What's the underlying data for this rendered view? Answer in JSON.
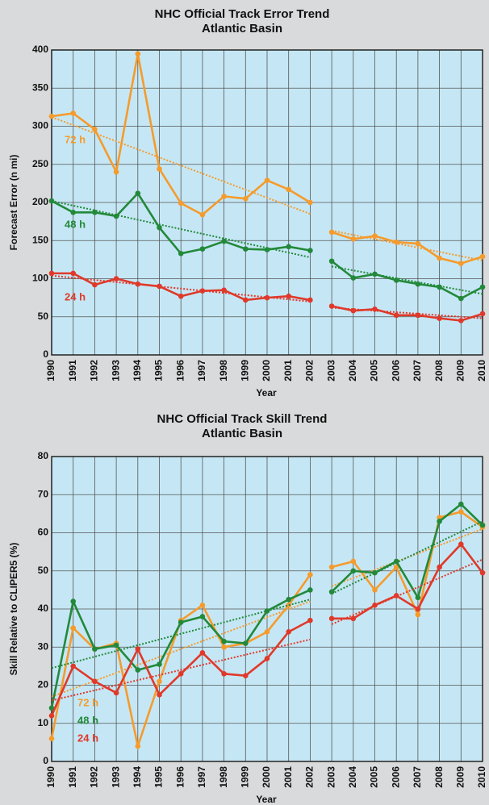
{
  "chart_data": [
    {
      "type": "line",
      "title": "NHC Official Track Error Trend",
      "subtitle": "Atlantic Basin",
      "x_label": "Year",
      "y_label": "Forecast Error (n mi)",
      "x": [
        1990,
        1991,
        1992,
        1993,
        1994,
        1995,
        1996,
        1997,
        1998,
        1999,
        2000,
        2001,
        2002,
        null,
        2003,
        2004,
        2005,
        2006,
        2007,
        2008,
        2009,
        2010
      ],
      "xlim": [
        1990,
        2010
      ],
      "xticks": [
        1990,
        1991,
        1992,
        1993,
        1994,
        1995,
        1996,
        1997,
        1998,
        1999,
        2000,
        2001,
        2002,
        2003,
        2004,
        2005,
        2006,
        2007,
        2008,
        2009,
        2010
      ],
      "ylim": [
        0,
        400
      ],
      "yticks": [
        0,
        50,
        100,
        150,
        200,
        250,
        300,
        350,
        400
      ],
      "grid": true,
      "legend": "beside-lines",
      "series": [
        {
          "name": "72 h",
          "color": "#f59b2c",
          "values": [
            313,
            317,
            296,
            240,
            395,
            244,
            199,
            184,
            208,
            205,
            229,
            217,
            200,
            null,
            161,
            152,
            156,
            148,
            146,
            127,
            120,
            129
          ],
          "trend": [
            {
              "x": [
                1990,
                2002
              ],
              "values": [
                312,
                185
              ]
            },
            {
              "x": [
                2003,
                2010
              ],
              "values": [
                163,
                124
              ]
            }
          ]
        },
        {
          "name": "48 h",
          "color": "#23893a",
          "values": [
            202,
            187,
            187,
            182,
            212,
            167,
            133,
            139,
            149,
            139,
            138,
            142,
            137,
            null,
            123,
            101,
            106,
            98,
            93,
            89,
            74,
            89
          ],
          "trend": [
            {
              "x": [
                1990,
                2002
              ],
              "values": [
                202,
                128
              ]
            },
            {
              "x": [
                2003,
                2010
              ],
              "values": [
                116,
                80
              ]
            }
          ]
        },
        {
          "name": "24 h",
          "color": "#e0392a",
          "values": [
            107,
            107,
            92,
            100,
            93,
            90,
            77,
            84,
            85,
            72,
            75,
            77,
            72,
            null,
            64,
            58,
            60,
            52,
            52,
            48,
            45,
            54
          ],
          "trend": [
            {
              "x": [
                1990,
                2002
              ],
              "values": [
                104,
                70
              ]
            },
            {
              "x": [
                2003,
                2010
              ],
              "values": [
                62,
                48
              ]
            }
          ]
        }
      ]
    },
    {
      "type": "line",
      "title": "NHC Official Track Skill Trend",
      "subtitle": "Atlantic Basin",
      "x_label": "Year",
      "y_label": "Skill Relative to CLIPER5 (%)",
      "x": [
        1990,
        1991,
        1992,
        1993,
        1994,
        1995,
        1996,
        1997,
        1998,
        1999,
        2000,
        2001,
        2002,
        null,
        2003,
        2004,
        2005,
        2006,
        2007,
        2008,
        2009,
        2010
      ],
      "xlim": [
        1990,
        2010
      ],
      "xticks": [
        1990,
        1991,
        1992,
        1993,
        1994,
        1995,
        1996,
        1997,
        1998,
        1999,
        2000,
        2001,
        2002,
        2003,
        2004,
        2005,
        2006,
        2007,
        2008,
        2009,
        2010
      ],
      "ylim": [
        0,
        80
      ],
      "yticks": [
        0,
        10,
        20,
        30,
        40,
        50,
        60,
        70,
        80
      ],
      "grid": true,
      "legend": "lower-left",
      "series": [
        {
          "name": "72 h",
          "color": "#f59b2c",
          "values": [
            6,
            35,
            29.5,
            31,
            4,
            21,
            37,
            41,
            30,
            31,
            34,
            41,
            49,
            null,
            51,
            52.5,
            45,
            51,
            38.5,
            64,
            65.5,
            61.5
          ],
          "trend": [
            {
              "x": [
                1990,
                2002
              ],
              "values": [
                17,
                42
              ]
            },
            {
              "x": [
                2003,
                2010
              ],
              "values": [
                46,
                61
              ]
            }
          ]
        },
        {
          "name": "48 h",
          "color": "#23893a",
          "values": [
            14,
            42,
            29.5,
            30.5,
            24,
            25.5,
            36.5,
            38,
            31.5,
            31,
            39.5,
            42.5,
            45,
            null,
            44.5,
            50,
            49.5,
            52.5,
            43,
            63,
            67.5,
            62
          ],
          "trend": [
            {
              "x": [
                1990,
                2002
              ],
              "values": [
                24.5,
                42.5
              ]
            },
            {
              "x": [
                2003,
                2010
              ],
              "values": [
                44,
                63
              ]
            }
          ]
        },
        {
          "name": "24 h",
          "color": "#e0392a",
          "values": [
            12,
            25,
            21,
            18,
            29.5,
            17.5,
            23,
            28.5,
            23,
            22.5,
            27,
            34,
            37,
            null,
            37.5,
            37.5,
            41,
            43.5,
            40,
            51,
            57,
            49.5
          ],
          "trend": [
            {
              "x": [
                1990,
                2002
              ],
              "values": [
                16,
                32
              ]
            },
            {
              "x": [
                2003,
                2010
              ],
              "values": [
                36,
                53
              ]
            }
          ]
        }
      ]
    }
  ]
}
